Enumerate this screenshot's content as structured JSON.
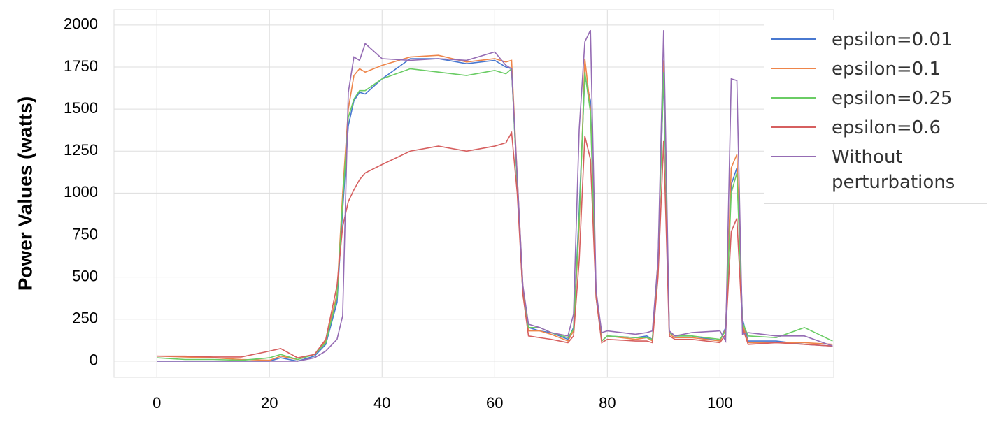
{
  "chart_data": {
    "type": "line",
    "y_label": "Power Values (watts)",
    "x": [
      0,
      5,
      10,
      15,
      20,
      22,
      25,
      28,
      30,
      32,
      33,
      34,
      35,
      36,
      37,
      40,
      45,
      50,
      55,
      60,
      62,
      63,
      64,
      65,
      66,
      68,
      70,
      73,
      74,
      75,
      76,
      77,
      78,
      79,
      80,
      85,
      87,
      88,
      89,
      90,
      91,
      92,
      95,
      100,
      101,
      102,
      103,
      104,
      105,
      110,
      115,
      120
    ],
    "series": [
      {
        "name": "epsilon=0.01",
        "color": "#4878d0",
        "values": [
          0,
          0,
          0,
          0,
          0,
          20,
          0,
          30,
          100,
          350,
          900,
          1400,
          1550,
          1600,
          1590,
          1680,
          1800,
          1800,
          1770,
          1790,
          1750,
          1740,
          1050,
          400,
          200,
          180,
          170,
          130,
          200,
          900,
          1700,
          1550,
          400,
          120,
          150,
          140,
          150,
          130,
          600,
          1700,
          170,
          150,
          150,
          120,
          200,
          1050,
          1150,
          250,
          120,
          120,
          100,
          90
        ]
      },
      {
        "name": "epsilon=0.1",
        "color": "#ee854a",
        "values": [
          30,
          25,
          20,
          10,
          5,
          30,
          10,
          40,
          120,
          400,
          1000,
          1500,
          1700,
          1740,
          1720,
          1760,
          1810,
          1820,
          1780,
          1800,
          1780,
          1790,
          1100,
          450,
          180,
          180,
          160,
          120,
          180,
          800,
          1800,
          1500,
          420,
          120,
          150,
          130,
          140,
          120,
          550,
          1790,
          160,
          140,
          140,
          120,
          190,
          1150,
          1230,
          220,
          110,
          110,
          110,
          100
        ]
      },
      {
        "name": "epsilon=0.25",
        "color": "#6acc64",
        "values": [
          20,
          10,
          10,
          5,
          20,
          40,
          10,
          40,
          110,
          380,
          950,
          1450,
          1560,
          1610,
          1610,
          1680,
          1740,
          1720,
          1700,
          1730,
          1710,
          1740,
          1050,
          400,
          200,
          200,
          170,
          140,
          190,
          850,
          1720,
          1480,
          380,
          120,
          150,
          140,
          140,
          130,
          580,
          1720,
          170,
          150,
          150,
          130,
          180,
          1000,
          1120,
          230,
          150,
          140,
          200,
          120
        ]
      },
      {
        "name": "epsilon=0.6",
        "color": "#d65f5f",
        "values": [
          30,
          30,
          25,
          25,
          60,
          75,
          20,
          40,
          130,
          450,
          800,
          950,
          1020,
          1080,
          1120,
          1170,
          1250,
          1280,
          1250,
          1280,
          1300,
          1360,
          1000,
          400,
          150,
          140,
          130,
          110,
          150,
          600,
          1340,
          1200,
          380,
          110,
          130,
          120,
          120,
          110,
          500,
          1310,
          150,
          130,
          130,
          110,
          160,
          770,
          850,
          200,
          100,
          110,
          100,
          90
        ]
      },
      {
        "name": "Without perturbations",
        "color": "#956cb4",
        "values": [
          0,
          0,
          0,
          0,
          0,
          0,
          0,
          20,
          60,
          130,
          270,
          1600,
          1810,
          1790,
          1890,
          1800,
          1790,
          1800,
          1790,
          1840,
          1760,
          1740,
          1100,
          450,
          220,
          200,
          170,
          150,
          280,
          1380,
          1900,
          1970,
          420,
          170,
          180,
          160,
          170,
          180,
          600,
          1970,
          180,
          150,
          170,
          180,
          120,
          1680,
          1670,
          160,
          170,
          150,
          150,
          90
        ]
      }
    ],
    "xlim": [
      -7.6,
      120.2
    ],
    "ylim": [
      -96,
      2091
    ],
    "xticks": [
      0,
      20,
      40,
      60,
      80,
      100
    ],
    "yticks": [
      0,
      250,
      500,
      750,
      1000,
      1250,
      1500,
      1750,
      2000
    ],
    "grid": true,
    "legend": "upper right"
  }
}
